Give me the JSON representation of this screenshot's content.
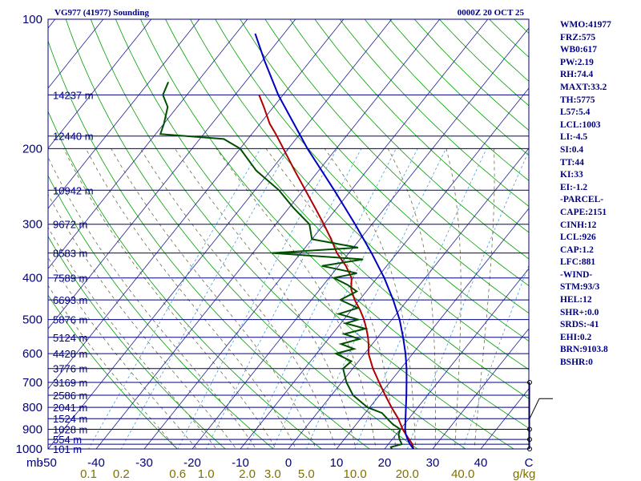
{
  "header": {
    "title": "VG977 (41977) Sounding",
    "time": "0000Z 20 OCT 25"
  },
  "indices": [
    "WMO:41977",
    "FRZ:575",
    "WB0:617",
    "PW:2.19",
    "RH:74.4",
    "MAXT:33.2",
    "TH:5775",
    "L57:5.4",
    "LCL:1003",
    "LI:-4.5",
    "SI:0.4",
    "TT:44",
    "KI:33",
    "EI:-1.2",
    "-PARCEL-",
    "CAPE:2151",
    "CINH:12",
    "LCL:926",
    "CAP:1.2",
    "LFC:881",
    "-WIND-",
    "STM:93/3",
    "HEL:12",
    "SHR+:0.0",
    "SRDS:-41",
    "EHI:0.2",
    "BRN:9103.8",
    "BSHR:0"
  ],
  "colors": {
    "frame": "#000080",
    "isobar": "#000080",
    "isotherm": "#1e1e96",
    "dry_adiabat": "#00a000",
    "moist_adiabat": "#6e6e46",
    "mixing_ratio": "#4aa0d8",
    "temperature": "#b00000",
    "dewpoint": "#005000",
    "parcel": "#0000c0"
  },
  "chart_data": {
    "type": "line",
    "title": "VG977 (41977) Sounding",
    "xlabel": "Temperature (C)",
    "ylabel": "mb",
    "xlim": [
      -50,
      50
    ],
    "ylim": [
      1000,
      100
    ],
    "pressure_ticks": [
      {
        "p": 100,
        "label": "100"
      },
      {
        "p": 200,
        "label": "200"
      },
      {
        "p": 300,
        "label": "300"
      },
      {
        "p": 400,
        "label": "400"
      },
      {
        "p": 500,
        "label": "500"
      },
      {
        "p": 600,
        "label": "600"
      },
      {
        "p": 700,
        "label": "700"
      },
      {
        "p": 800,
        "label": "800"
      },
      {
        "p": 900,
        "label": "900"
      },
      {
        "p": 1000,
        "label": "1000"
      }
    ],
    "temperature_ticks": [
      {
        "t": -50,
        "label": "-50"
      },
      {
        "t": -40,
        "label": "-40"
      },
      {
        "t": -30,
        "label": "-30"
      },
      {
        "t": -20,
        "label": "-20"
      },
      {
        "t": -10,
        "label": "-10"
      },
      {
        "t": 0,
        "label": "0"
      },
      {
        "t": 10,
        "label": "10"
      },
      {
        "t": 20,
        "label": "20"
      },
      {
        "t": 30,
        "label": "30"
      },
      {
        "t": 40,
        "label": "40"
      },
      {
        "t": 50,
        "label": "C"
      }
    ],
    "axis_unit_label": "mb",
    "height_levels": [
      {
        "p": 150,
        "label": "14237 m"
      },
      {
        "p": 187,
        "label": "12440 m"
      },
      {
        "p": 250,
        "label": "10942 m"
      },
      {
        "p": 300,
        "label": "9672 m"
      },
      {
        "p": 350,
        "label": "8583 m"
      },
      {
        "p": 400,
        "label": "7589 m"
      },
      {
        "p": 450,
        "label": "6693 m"
      },
      {
        "p": 500,
        "label": "5876 m"
      },
      {
        "p": 550,
        "label": "5124 m"
      },
      {
        "p": 600,
        "label": "4428 m"
      },
      {
        "p": 650,
        "label": "3776 m"
      },
      {
        "p": 700,
        "label": "3169 m"
      },
      {
        "p": 750,
        "label": "2586 m"
      },
      {
        "p": 800,
        "label": "2041 m"
      },
      {
        "p": 850,
        "label": "1524 m"
      },
      {
        "p": 900,
        "label": "1028 m"
      },
      {
        "p": 950,
        "label": "554 m"
      },
      {
        "p": 1000,
        "label": "101 m"
      }
    ],
    "mixing_ratio_labels": [
      {
        "w": 0.1,
        "label": "0.1"
      },
      {
        "w": 0.2,
        "label": "0.2"
      },
      {
        "w": 0.6,
        "label": "0.6"
      },
      {
        "w": 1.0,
        "label": "1.0"
      },
      {
        "w": 2.0,
        "label": "2.0"
      },
      {
        "w": 3.0,
        "label": "3.0"
      },
      {
        "w": 5.0,
        "label": "5.0"
      },
      {
        "w": 10.0,
        "label": "10.0"
      },
      {
        "w": 20.0,
        "label": "20.0"
      },
      {
        "w": 40.0,
        "label": "40.0"
      }
    ],
    "mixing_ratio_unit": "g/kg",
    "series": [
      {
        "name": "Temperature",
        "points": [
          [
            1000,
            26.0
          ],
          [
            975,
            25.0
          ],
          [
            950,
            23.5
          ],
          [
            925,
            22.0
          ],
          [
            900,
            20.5
          ],
          [
            850,
            17.8
          ],
          [
            800,
            14.5
          ],
          [
            750,
            11.2
          ],
          [
            700,
            7.8
          ],
          [
            650,
            4.2
          ],
          [
            600,
            0.8
          ],
          [
            575,
            -0.5
          ],
          [
            550,
            -2.0
          ],
          [
            525,
            -3.8
          ],
          [
            500,
            -5.8
          ],
          [
            475,
            -8.2
          ],
          [
            450,
            -11.0
          ],
          [
            425,
            -13.5
          ],
          [
            400,
            -15.3
          ],
          [
            375,
            -18.5
          ],
          [
            350,
            -22.5
          ],
          [
            325,
            -26.0
          ],
          [
            300,
            -30.0
          ],
          [
            275,
            -34.5
          ],
          [
            250,
            -39.5
          ],
          [
            225,
            -45.0
          ],
          [
            200,
            -51.0
          ],
          [
            185,
            -55.0
          ],
          [
            175,
            -58.0
          ],
          [
            160,
            -62.0
          ],
          [
            150,
            -65.0
          ]
        ]
      },
      {
        "name": "Dewpoint",
        "points": [
          [
            1000,
            21.5
          ],
          [
            990,
            21.0
          ],
          [
            975,
            22.8
          ],
          [
            950,
            21.5
          ],
          [
            925,
            20.5
          ],
          [
            900,
            20.0
          ],
          [
            875,
            17.5
          ],
          [
            850,
            15.5
          ],
          [
            825,
            13.5
          ],
          [
            800,
            9.5
          ],
          [
            750,
            4.5
          ],
          [
            700,
            1.0
          ],
          [
            650,
            -2.0
          ],
          [
            625,
            -1.5
          ],
          [
            600,
            -6.0
          ],
          [
            585,
            -3.0
          ],
          [
            570,
            -6.5
          ],
          [
            555,
            -3.5
          ],
          [
            540,
            -7.5
          ],
          [
            525,
            -4.0
          ],
          [
            510,
            -9.0
          ],
          [
            500,
            -7.0
          ],
          [
            485,
            -12.0
          ],
          [
            470,
            -9.0
          ],
          [
            450,
            -14.0
          ],
          [
            430,
            -12.0
          ],
          [
            415,
            -15.0
          ],
          [
            400,
            -19.0
          ],
          [
            390,
            -15.0
          ],
          [
            375,
            -23.5
          ],
          [
            362,
            -16.0
          ],
          [
            350,
            -36.0
          ],
          [
            340,
            -19.0
          ],
          [
            325,
            -30.0
          ],
          [
            300,
            -33.0
          ],
          [
            275,
            -39.0
          ],
          [
            250,
            -45.0
          ],
          [
            225,
            -53.0
          ],
          [
            200,
            -60.0
          ],
          [
            190,
            -65.0
          ],
          [
            185,
            -79.0
          ],
          [
            175,
            -80.0
          ],
          [
            160,
            -82.0
          ],
          [
            150,
            -85.0
          ],
          [
            140,
            -86.0
          ]
        ]
      },
      {
        "name": "Parcel",
        "points": [
          [
            1000,
            26.0
          ],
          [
            975,
            24.5
          ],
          [
            950,
            23.2
          ],
          [
            925,
            22.0
          ],
          [
            900,
            21.0
          ],
          [
            850,
            19.3
          ],
          [
            800,
            17.5
          ],
          [
            750,
            15.6
          ],
          [
            700,
            13.5
          ],
          [
            650,
            11.2
          ],
          [
            600,
            8.5
          ],
          [
            550,
            5.3
          ],
          [
            500,
            1.6
          ],
          [
            450,
            -3.0
          ],
          [
            400,
            -8.5
          ],
          [
            350,
            -15.3
          ],
          [
            300,
            -23.5
          ],
          [
            250,
            -33.5
          ],
          [
            200,
            -46.0
          ],
          [
            150,
            -61.0
          ],
          [
            125,
            -69.5
          ],
          [
            108,
            -76.0
          ]
        ]
      }
    ],
    "wind_barbs": [
      {
        "p": 1000,
        "dir": 90,
        "spd": 0
      },
      {
        "p": 950,
        "dir": 100,
        "spd": 0
      },
      {
        "p": 900,
        "dir": 110,
        "spd": 0
      },
      {
        "p": 850,
        "dir": 120,
        "spd": 5
      },
      {
        "p": 700,
        "dir": 160,
        "spd": 0
      }
    ]
  }
}
